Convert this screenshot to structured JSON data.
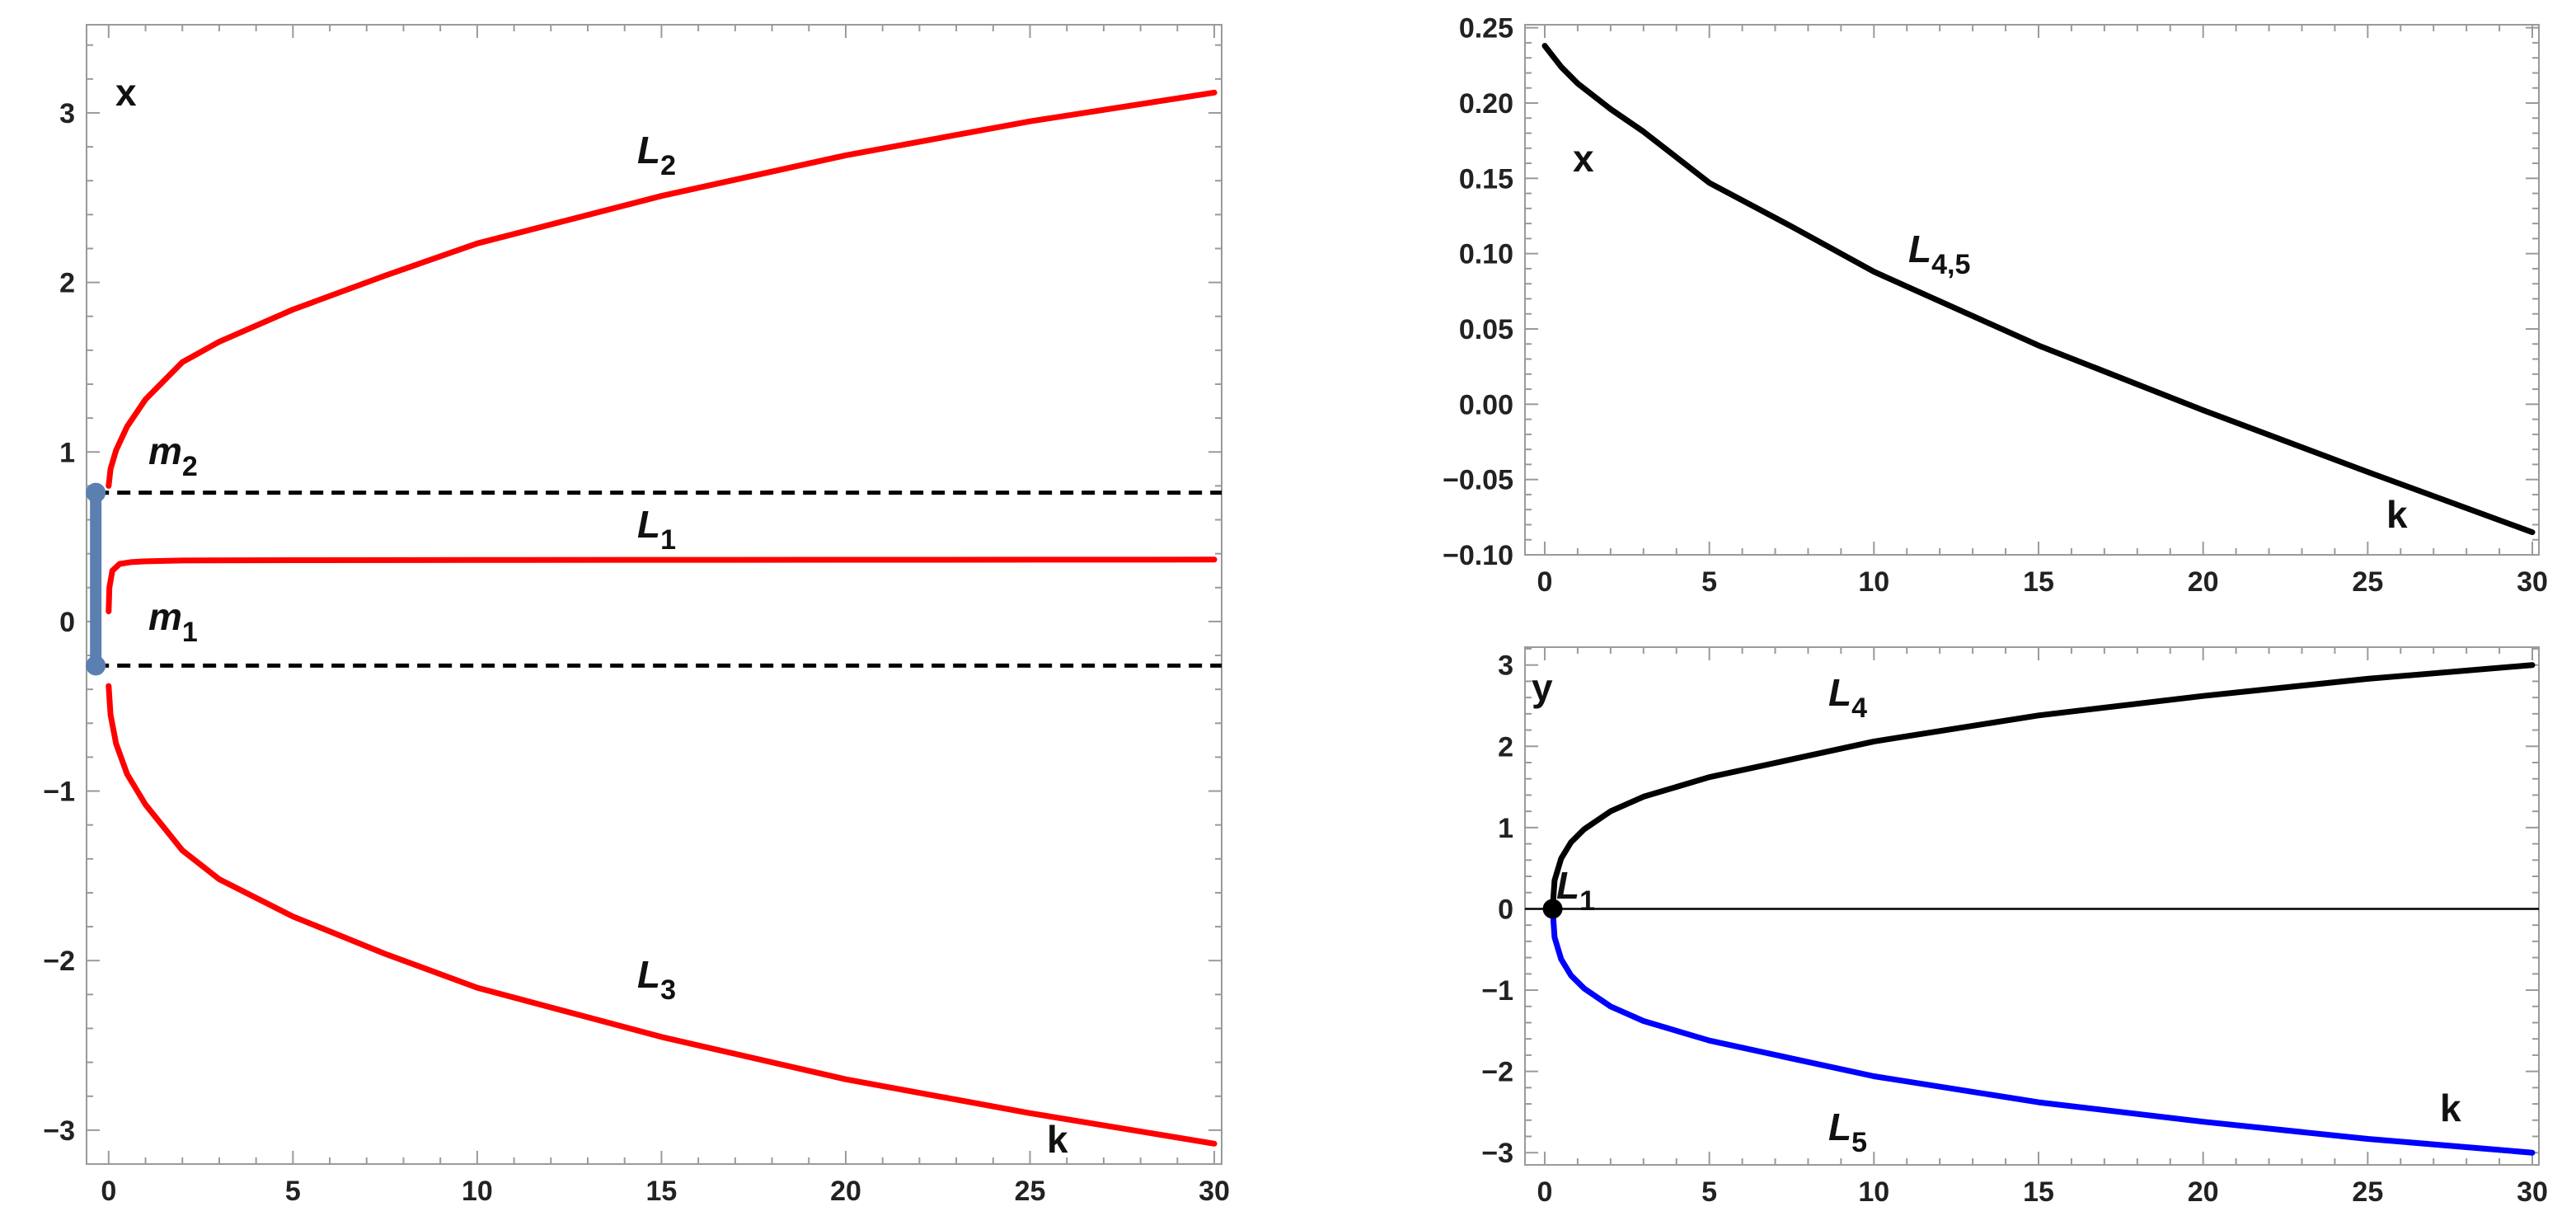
{
  "chart_data": [
    {
      "type": "line",
      "xlim": [
        -0.6,
        30.2
      ],
      "ylim": [
        -3.2,
        3.52
      ],
      "xticks": [
        0,
        5,
        10,
        15,
        20,
        25,
        30
      ],
      "xtick_labels": [
        "0",
        "5",
        "10",
        "15",
        "20",
        "25",
        "30"
      ],
      "yticks": [
        -3,
        -2,
        -1,
        0,
        1,
        2,
        3
      ],
      "ytick_labels": [
        "−3",
        "−2",
        "−1",
        "0",
        "1",
        "2",
        "3"
      ],
      "ylabel": "x",
      "xlabel": "k",
      "series": [
        {
          "name": "L₂",
          "color": "#ff0000",
          "x": [
            0,
            0.05,
            0.2,
            0.5,
            1,
            2,
            3,
            5,
            7.5,
            10,
            15,
            20,
            25,
            30
          ],
          "y": [
            0.8,
            0.9,
            1.01,
            1.15,
            1.31,
            1.53,
            1.65,
            1.84,
            2.04,
            2.23,
            2.51,
            2.75,
            2.95,
            3.12
          ]
        },
        {
          "name": "L₁",
          "color": "#ff0000",
          "x": [
            0,
            0.02,
            0.1,
            0.3,
            0.6,
            1,
            2,
            5,
            10,
            20,
            30
          ],
          "y": [
            0.06,
            0.2,
            0.3,
            0.34,
            0.35,
            0.355,
            0.36,
            0.362,
            0.363,
            0.364,
            0.365
          ]
        },
        {
          "name": "L₃",
          "color": "#ff0000",
          "x": [
            0,
            0.05,
            0.2,
            0.5,
            1,
            2,
            3,
            5,
            7.5,
            10,
            15,
            20,
            25,
            30
          ],
          "y": [
            -0.38,
            -0.55,
            -0.72,
            -0.9,
            -1.08,
            -1.35,
            -1.52,
            -1.74,
            -1.96,
            -2.16,
            -2.45,
            -2.7,
            -2.9,
            -3.08
          ]
        }
      ],
      "reference_lines": [
        {
          "name": "m₂",
          "y": 0.76,
          "style": "dashed"
        },
        {
          "name": "m₁",
          "y": -0.26,
          "style": "dashed"
        }
      ],
      "marked_segment": {
        "x": -0.35,
        "y": [
          -0.26,
          0.76
        ],
        "color": "#5b7fb0"
      }
    },
    {
      "type": "line",
      "xlim": [
        -0.6,
        30.2
      ],
      "ylim": [
        -0.1,
        0.252
      ],
      "xticks": [
        0,
        5,
        10,
        15,
        20,
        25,
        30
      ],
      "xtick_labels": [
        "0",
        "5",
        "10",
        "15",
        "20",
        "25",
        "30"
      ],
      "yticks": [
        -0.1,
        -0.05,
        0,
        0.05,
        0.1,
        0.15,
        0.2,
        0.25
      ],
      "ytick_labels": [
        "−0.10",
        "−0.05",
        "0.00",
        "0.05",
        "0.10",
        "0.15",
        "0.20",
        "0.25"
      ],
      "ylabel": "x",
      "xlabel": "k",
      "series": [
        {
          "name": "L₄,₅",
          "color": "#000000",
          "x": [
            0,
            0.5,
            1,
            2,
            3,
            5,
            7.5,
            10,
            15,
            20,
            25,
            30
          ],
          "y": [
            0.238,
            0.224,
            0.213,
            0.196,
            0.181,
            0.147,
            0.118,
            0.088,
            0.039,
            -0.004,
            -0.045,
            -0.085
          ]
        }
      ]
    },
    {
      "type": "line",
      "xlim": [
        -0.6,
        30.2
      ],
      "ylim": [
        -3.15,
        3.22
      ],
      "xticks": [
        0,
        5,
        10,
        15,
        20,
        25,
        30
      ],
      "xtick_labels": [
        "0",
        "5",
        "10",
        "15",
        "20",
        "25",
        "30"
      ],
      "yticks": [
        -3,
        -2,
        -1,
        0,
        1,
        2,
        3
      ],
      "ytick_labels": [
        "−3",
        "−2",
        "−1",
        "0",
        "1",
        "2",
        "3"
      ],
      "ylabel": "y",
      "xlabel": "k",
      "series": [
        {
          "name": "L₄",
          "color": "#000000",
          "x": [
            0.24,
            0.3,
            0.5,
            0.8,
            1.2,
            2,
            3,
            5,
            7.5,
            10,
            15,
            20,
            25,
            30
          ],
          "y": [
            0,
            0.35,
            0.62,
            0.82,
            0.98,
            1.2,
            1.38,
            1.62,
            1.84,
            2.06,
            2.38,
            2.62,
            2.83,
            3.0
          ]
        },
        {
          "name": "L₅",
          "color": "#0000ff",
          "x": [
            0.24,
            0.3,
            0.5,
            0.8,
            1.2,
            2,
            3,
            5,
            7.5,
            10,
            15,
            20,
            25,
            30
          ],
          "y": [
            0,
            -0.35,
            -0.62,
            -0.82,
            -0.98,
            -1.2,
            -1.38,
            -1.62,
            -1.84,
            -2.06,
            -2.38,
            -2.62,
            -2.83,
            -3.0
          ]
        }
      ],
      "reference_lines": [
        {
          "name": "",
          "y": 0,
          "style": "solid-thin"
        }
      ],
      "point": {
        "name": "L₁",
        "x": 0.24,
        "y": 0
      }
    }
  ]
}
